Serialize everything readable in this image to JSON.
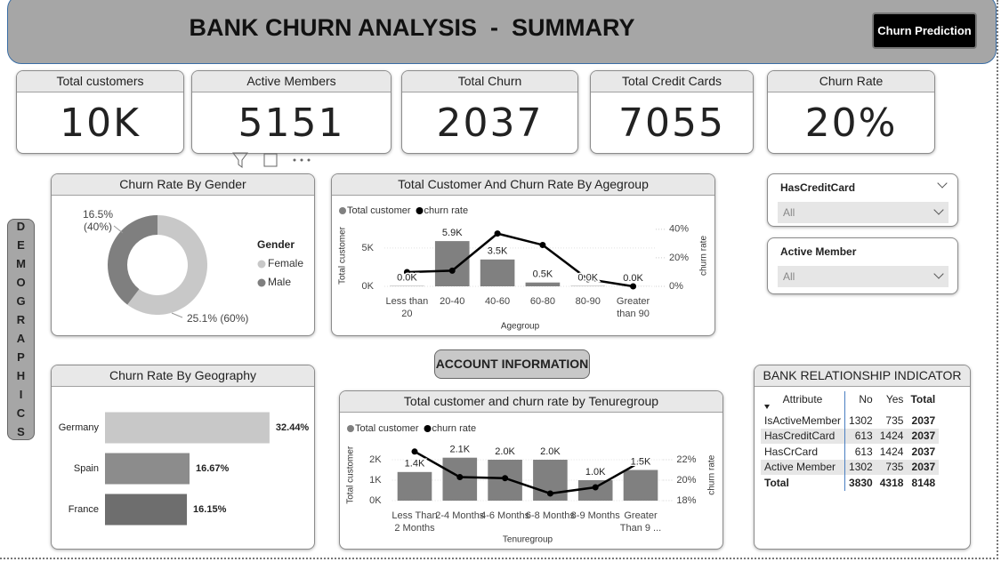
{
  "header": {
    "title": "BANK CHURN ANALYSIS  -  SUMMARY",
    "button": "Churn Prediction"
  },
  "kpis": [
    {
      "label": "Total customers",
      "value": "10K"
    },
    {
      "label": "Active Members",
      "value": 5151
    },
    {
      "label": "Total Churn",
      "value": 2037
    },
    {
      "label": "Total Credit Cards",
      "value": 7055
    },
    {
      "label": "Churn Rate",
      "value": "20%"
    }
  ],
  "side_label": "DEMOGRAPHICS",
  "section_label": "ACCOUNT INFORMATION",
  "slicers": [
    {
      "title": "HasCreditCard",
      "value": "All"
    },
    {
      "title": "Active Member",
      "value": "All"
    }
  ],
  "table": {
    "title": "BANK RELATIONSHIP INDICATOR",
    "columns": [
      "Attribute",
      "No",
      "Yes",
      "Total"
    ],
    "rows": [
      [
        "IsActiveMember",
        1302,
        735,
        2037
      ],
      [
        "HasCreditCard",
        613,
        1424,
        2037
      ],
      [
        "HasCrCard",
        613,
        1424,
        2037
      ],
      [
        "Active Member",
        1302,
        735,
        2037
      ]
    ],
    "total": [
      "Total",
      3830,
      4318,
      8148
    ]
  },
  "chart_data": [
    {
      "type": "pie",
      "title": "Churn Rate By Gender",
      "legend_title": "Gender",
      "categories": [
        "Female",
        "Male"
      ],
      "values": [
        25.1,
        16.5
      ],
      "value_labels": [
        "25.1% (60%)",
        "16.5% (40%)"
      ],
      "colors": [
        "#c8c8c8",
        "#7f7f7f"
      ],
      "donut": true,
      "legend": "right"
    },
    {
      "type": "combo",
      "title": "Total Customer And Churn Rate By Agegroup",
      "x_label": "Agegroup",
      "y_label": "Total customer",
      "y2_label": "churn rate",
      "categories": [
        "Less than 20",
        "20-40",
        "40-60",
        "60-80",
        "80-90",
        "Greater than 90"
      ],
      "series": [
        {
          "name": "Total customer",
          "type": "bar",
          "color": "#808080",
          "values": [
            40,
            5900,
            3500,
            500,
            40,
            10
          ],
          "value_labels": [
            "0.0K",
            "5.9K",
            "3.5K",
            "0.5K",
            "0.0K",
            "0.0K"
          ]
        },
        {
          "name": "churn rate",
          "type": "line",
          "axis": "y2",
          "color": "#000000",
          "values": [
            10,
            11,
            37,
            29,
            5,
            0
          ]
        }
      ],
      "ylim": [
        0,
        8000
      ],
      "yticks": [
        {
          "value": 0,
          "label": "0K"
        },
        {
          "value": 5000,
          "label": "5K"
        }
      ],
      "y2lim": [
        0,
        43
      ],
      "y2ticks": [
        {
          "value": 0,
          "label": "0%"
        },
        {
          "value": 20,
          "label": "20%"
        },
        {
          "value": 40,
          "label": "40%"
        }
      ],
      "grid": true
    },
    {
      "type": "hbar",
      "title": "Churn Rate By Geography",
      "categories": [
        "Germany",
        "Spain",
        "France"
      ],
      "values": [
        32.44,
        16.67,
        16.15
      ],
      "value_labels": [
        "32.44%",
        "16.67%",
        "16.15%"
      ],
      "colors": [
        "#c8c8c8",
        "#8c8c8c",
        "#6e6e6e"
      ],
      "xlim": [
        0,
        35
      ]
    },
    {
      "type": "combo",
      "title": "Total customer and churn rate by Tenuregroup",
      "x_label": "Tenuregroup",
      "y_label": "Total customer",
      "y2_label": "churn rate",
      "categories": [
        "Less Than 2 Months",
        "2-4 Months",
        "4-6 Months",
        "6-8 Months",
        "8-9 Months",
        "Greater Than 9 ..."
      ],
      "series": [
        {
          "name": "Total customer",
          "type": "bar",
          "color": "#808080",
          "values": [
            1400,
            2100,
            2000,
            2000,
            1000,
            1500
          ],
          "value_labels": [
            "1.4K",
            "2.1K",
            "2.0K",
            "2.0K",
            "1.0K",
            "1.5K"
          ]
        },
        {
          "name": "churn rate",
          "type": "line",
          "axis": "y2",
          "color": "#000000",
          "values": [
            22.8,
            20.3,
            20.2,
            18.7,
            19.3,
            21.8
          ]
        }
      ],
      "ylim": [
        0,
        2500
      ],
      "yticks": [
        {
          "value": 0,
          "label": "0K"
        },
        {
          "value": 1000,
          "label": "1K"
        },
        {
          "value": 2000,
          "label": "2K"
        }
      ],
      "y2lim": [
        18,
        23
      ],
      "y2ticks": [
        {
          "value": 18,
          "label": "18%"
        },
        {
          "value": 20,
          "label": "20%"
        },
        {
          "value": 22,
          "label": "22%"
        }
      ],
      "grid": true
    }
  ]
}
